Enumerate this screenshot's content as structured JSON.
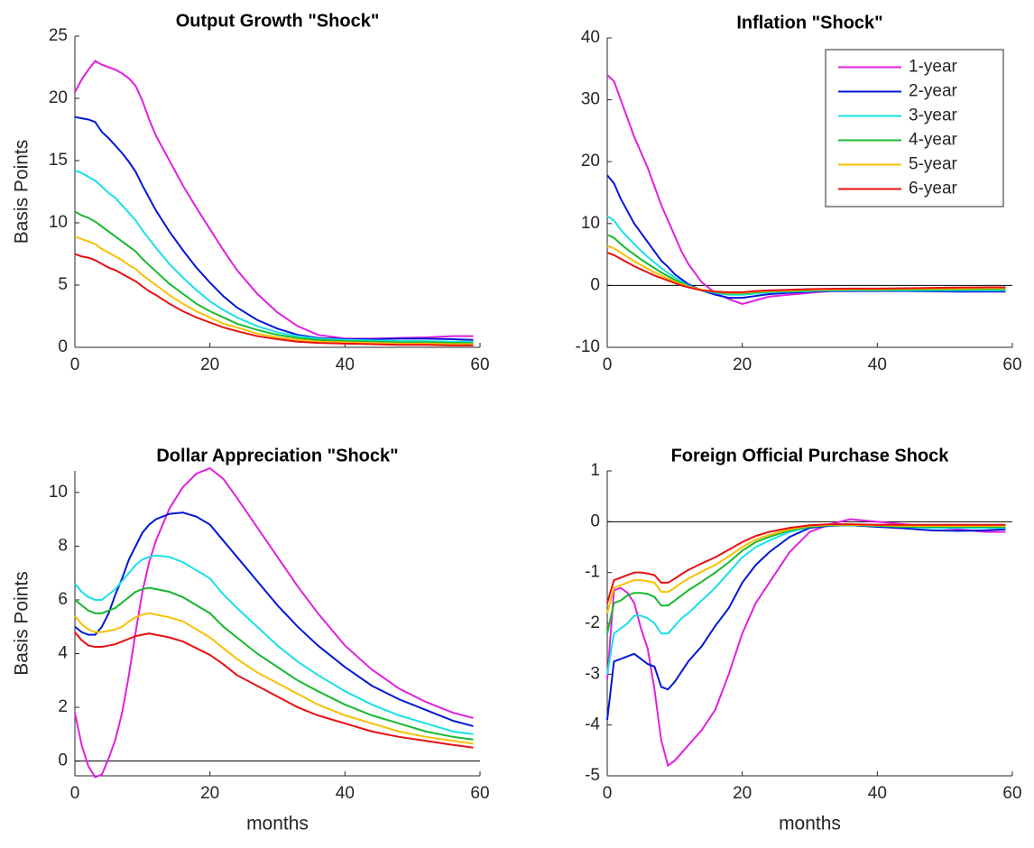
{
  "chart_data": [
    {
      "type": "line",
      "title": "Output Growth \"Shock\"",
      "y_label": "Basis Points",
      "x": [
        0,
        1,
        2,
        3,
        4,
        5,
        6,
        7,
        8,
        9,
        10,
        11,
        12,
        14,
        16,
        18,
        20,
        22,
        24,
        27,
        30,
        33,
        36,
        40,
        44,
        48,
        52,
        56,
        59
      ],
      "xlim": [
        0,
        60
      ],
      "xticks": [
        0,
        20,
        40,
        60
      ],
      "ylim": [
        0,
        25
      ],
      "yticks": [
        0,
        5,
        10,
        15,
        20,
        25
      ],
      "series": [
        {
          "color": "#e020e0",
          "values": [
            20.5,
            21.5,
            22.3,
            23,
            22.7,
            22.5,
            22.3,
            22,
            21.6,
            21,
            19.8,
            18.3,
            17,
            15,
            13,
            11.2,
            9.5,
            7.8,
            6.2,
            4.3,
            2.8,
            1.7,
            1.0,
            0.7,
            0.7,
            0.75,
            0.8,
            0.9,
            0.9
          ]
        },
        {
          "color": "#0018d8",
          "values": [
            18.5,
            18.4,
            18.3,
            18.1,
            17.3,
            16.8,
            16.2,
            15.6,
            14.9,
            14.1,
            13,
            12,
            11,
            9.3,
            7.8,
            6.4,
            5.2,
            4.1,
            3.2,
            2.2,
            1.5,
            1.0,
            0.75,
            0.65,
            0.65,
            0.7,
            0.7,
            0.65,
            0.6
          ]
        },
        {
          "color": "#18e0e8",
          "values": [
            14.2,
            14,
            13.7,
            13.4,
            12.9,
            12.4,
            12,
            11.4,
            10.8,
            10.2,
            9.4,
            8.7,
            8,
            6.7,
            5.6,
            4.6,
            3.7,
            3.0,
            2.4,
            1.7,
            1.2,
            0.9,
            0.7,
            0.6,
            0.55,
            0.5,
            0.5,
            0.45,
            0.45
          ]
        },
        {
          "color": "#18b830",
          "values": [
            10.9,
            10.6,
            10.4,
            10.1,
            9.7,
            9.3,
            8.9,
            8.5,
            8.1,
            7.7,
            7.1,
            6.6,
            6.1,
            5.1,
            4.3,
            3.5,
            2.9,
            2.4,
            1.9,
            1.4,
            1.0,
            0.75,
            0.6,
            0.5,
            0.45,
            0.4,
            0.4,
            0.35,
            0.35
          ]
        },
        {
          "color": "#f8c000",
          "values": [
            8.9,
            8.7,
            8.5,
            8.3,
            7.9,
            7.6,
            7.3,
            7.0,
            6.6,
            6.3,
            5.8,
            5.4,
            5.0,
            4.2,
            3.5,
            2.9,
            2.4,
            1.9,
            1.6,
            1.1,
            0.8,
            0.6,
            0.45,
            0.4,
            0.35,
            0.3,
            0.3,
            0.25,
            0.25
          ]
        },
        {
          "color": "#e81010",
          "values": [
            7.5,
            7.3,
            7.2,
            7.0,
            6.7,
            6.4,
            6.2,
            5.9,
            5.6,
            5.3,
            4.9,
            4.5,
            4.2,
            3.5,
            2.9,
            2.4,
            2.0,
            1.6,
            1.3,
            0.9,
            0.65,
            0.45,
            0.35,
            0.3,
            0.25,
            0.2,
            0.2,
            0.15,
            0.15
          ]
        }
      ]
    },
    {
      "type": "line",
      "title": "Inflation \"Shock\"",
      "legend": "northeast",
      "hline": 0,
      "x": [
        0,
        1,
        2,
        3,
        4,
        5,
        6,
        7,
        8,
        9,
        10,
        11,
        12,
        14,
        16,
        18,
        20,
        22,
        24,
        27,
        30,
        33,
        36,
        40,
        44,
        48,
        52,
        56,
        59
      ],
      "xlim": [
        0,
        60
      ],
      "xticks": [
        0,
        20,
        40,
        60
      ],
      "ylim": [
        -10,
        40
      ],
      "yticks": [
        -10,
        0,
        10,
        20,
        30,
        40
      ],
      "series": [
        {
          "name": "1-year",
          "color": "#e020e0",
          "values": [
            34,
            33,
            30,
            27,
            24,
            21.5,
            19,
            16,
            13,
            10.5,
            8,
            5.5,
            3.5,
            0.5,
            -1.2,
            -2.2,
            -3,
            -2.4,
            -1.8,
            -1.5,
            -1.2,
            -0.9,
            -0.9,
            -0.85,
            -0.85,
            -0.8,
            -0.8,
            -0.75,
            -0.75
          ]
        },
        {
          "name": "2-year",
          "color": "#0018d8",
          "values": [
            17.8,
            16.5,
            14,
            12,
            10,
            8.5,
            7,
            5.5,
            4,
            3,
            1.8,
            1,
            0.2,
            -0.8,
            -1.5,
            -2,
            -2,
            -1.7,
            -1.4,
            -1.2,
            -1.0,
            -0.9,
            -0.9,
            -0.9,
            -0.9,
            -0.95,
            -1.0,
            -1.0,
            -1.0
          ]
        },
        {
          "name": "3-year",
          "color": "#18e0e8",
          "values": [
            11.2,
            10.5,
            9,
            7.8,
            6.7,
            5.6,
            4.6,
            3.7,
            2.8,
            2,
            1.3,
            0.6,
            0,
            -0.8,
            -1.2,
            -1.5,
            -1.5,
            -1.3,
            -1.1,
            -1.0,
            -0.9,
            -0.8,
            -0.8,
            -0.8,
            -0.8,
            -0.8,
            -0.8,
            -0.8,
            -0.8
          ]
        },
        {
          "name": "4-year",
          "color": "#18b830",
          "values": [
            8.2,
            7.7,
            6.7,
            5.8,
            5,
            4.2,
            3.5,
            2.8,
            2.1,
            1.5,
            0.9,
            0.4,
            -0.1,
            -0.7,
            -1.1,
            -1.3,
            -1.3,
            -1.1,
            -1.0,
            -0.9,
            -0.8,
            -0.7,
            -0.7,
            -0.7,
            -0.65,
            -0.65,
            -0.65,
            -0.6,
            -0.6
          ]
        },
        {
          "name": "5-year",
          "color": "#f8c000",
          "values": [
            6.4,
            6,
            5.3,
            4.6,
            3.9,
            3.3,
            2.7,
            2.1,
            1.6,
            1.1,
            0.6,
            0.2,
            -0.2,
            -0.7,
            -1.0,
            -1.2,
            -1.2,
            -1.0,
            -0.9,
            -0.8,
            -0.7,
            -0.65,
            -0.6,
            -0.6,
            -0.55,
            -0.5,
            -0.5,
            -0.45,
            -0.45
          ]
        },
        {
          "name": "6-year",
          "color": "#e81010",
          "values": [
            5.3,
            4.9,
            4.3,
            3.7,
            3.1,
            2.6,
            2.1,
            1.6,
            1.2,
            0.8,
            0.4,
            0,
            -0.3,
            -0.8,
            -1.0,
            -1.1,
            -1.1,
            -0.9,
            -0.8,
            -0.7,
            -0.6,
            -0.55,
            -0.5,
            -0.5,
            -0.45,
            -0.4,
            -0.35,
            -0.3,
            -0.3
          ]
        }
      ]
    },
    {
      "type": "line",
      "title": "Dollar Appreciation \"Shock\"",
      "y_label": "Basis Points",
      "x_label": "months",
      "hline": 0,
      "x": [
        0,
        1,
        2,
        3,
        4,
        5,
        6,
        7,
        8,
        9,
        10,
        11,
        12,
        14,
        16,
        18,
        20,
        22,
        24,
        27,
        30,
        33,
        36,
        40,
        44,
        48,
        52,
        56,
        59
      ],
      "xlim": [
        0,
        60
      ],
      "xticks": [
        0,
        20,
        40,
        60
      ],
      "ylim": [
        -0.55,
        10.8
      ],
      "yticks": [
        0,
        2,
        4,
        6,
        8,
        10
      ],
      "series": [
        {
          "color": "#e020e0",
          "values": [
            1.8,
            0.6,
            -0.2,
            -0.6,
            -0.5,
            0.1,
            0.8,
            1.8,
            3.2,
            4.8,
            6.3,
            7.4,
            8.2,
            9.4,
            10.2,
            10.7,
            10.9,
            10.5,
            9.8,
            8.7,
            7.6,
            6.5,
            5.5,
            4.3,
            3.4,
            2.7,
            2.2,
            1.8,
            1.6
          ]
        },
        {
          "color": "#0018d8",
          "values": [
            5.0,
            4.8,
            4.7,
            4.7,
            5.0,
            5.5,
            6.2,
            6.8,
            7.5,
            8.0,
            8.5,
            8.8,
            9.0,
            9.2,
            9.25,
            9.1,
            8.8,
            8.2,
            7.6,
            6.7,
            5.8,
            5.0,
            4.3,
            3.5,
            2.8,
            2.3,
            1.9,
            1.5,
            1.3
          ]
        },
        {
          "color": "#18e0e8",
          "values": [
            6.6,
            6.3,
            6.1,
            6.0,
            6.0,
            6.2,
            6.4,
            6.7,
            7.0,
            7.3,
            7.5,
            7.6,
            7.65,
            7.6,
            7.4,
            7.1,
            6.8,
            6.2,
            5.7,
            5.0,
            4.3,
            3.7,
            3.2,
            2.6,
            2.1,
            1.7,
            1.4,
            1.1,
            1.0
          ]
        },
        {
          "color": "#18b830",
          "values": [
            6.0,
            5.8,
            5.6,
            5.5,
            5.5,
            5.6,
            5.7,
            5.9,
            6.1,
            6.3,
            6.4,
            6.45,
            6.4,
            6.3,
            6.1,
            5.8,
            5.5,
            5.0,
            4.6,
            4.0,
            3.5,
            3.0,
            2.6,
            2.1,
            1.7,
            1.4,
            1.1,
            0.9,
            0.8
          ]
        },
        {
          "color": "#f8c000",
          "values": [
            5.4,
            5.1,
            4.9,
            4.8,
            4.8,
            4.85,
            4.9,
            5.0,
            5.2,
            5.35,
            5.45,
            5.5,
            5.45,
            5.35,
            5.2,
            4.9,
            4.6,
            4.2,
            3.8,
            3.3,
            2.9,
            2.5,
            2.1,
            1.7,
            1.4,
            1.1,
            0.9,
            0.75,
            0.65
          ]
        },
        {
          "color": "#e81010",
          "values": [
            4.8,
            4.5,
            4.3,
            4.25,
            4.25,
            4.3,
            4.35,
            4.45,
            4.55,
            4.65,
            4.7,
            4.75,
            4.7,
            4.6,
            4.45,
            4.2,
            3.95,
            3.6,
            3.2,
            2.8,
            2.4,
            2.0,
            1.7,
            1.4,
            1.1,
            0.9,
            0.75,
            0.6,
            0.5
          ]
        }
      ]
    },
    {
      "type": "line",
      "title": "Foreign Official Purchase Shock",
      "x_label": "months",
      "hline": 0,
      "x": [
        0,
        1,
        2,
        3,
        4,
        5,
        6,
        7,
        8,
        9,
        10,
        11,
        12,
        14,
        16,
        18,
        20,
        22,
        24,
        27,
        30,
        33,
        36,
        40,
        44,
        48,
        52,
        56,
        59
      ],
      "xlim": [
        0,
        60
      ],
      "xticks": [
        0,
        20,
        40,
        60
      ],
      "ylim": [
        -5,
        1
      ],
      "yticks": [
        -5,
        -4,
        -3,
        -2,
        -1,
        0,
        1
      ],
      "series": [
        {
          "color": "#e020e0",
          "values": [
            -3.1,
            -1.35,
            -1.3,
            -1.4,
            -1.6,
            -2.1,
            -2.5,
            -3.3,
            -4.3,
            -4.8,
            -4.7,
            -4.55,
            -4.4,
            -4.1,
            -3.7,
            -3.0,
            -2.2,
            -1.6,
            -1.2,
            -0.6,
            -0.2,
            -0.05,
            0.05,
            0.0,
            -0.05,
            -0.1,
            -0.15,
            -0.2,
            -0.2
          ]
        },
        {
          "color": "#0018d8",
          "values": [
            -3.9,
            -2.75,
            -2.7,
            -2.65,
            -2.6,
            -2.7,
            -2.8,
            -2.85,
            -3.25,
            -3.3,
            -3.15,
            -2.95,
            -2.75,
            -2.45,
            -2.05,
            -1.7,
            -1.2,
            -0.85,
            -0.6,
            -0.3,
            -0.12,
            -0.08,
            -0.07,
            -0.1,
            -0.13,
            -0.17,
            -0.18,
            -0.17,
            -0.15
          ]
        },
        {
          "color": "#18e0e8",
          "values": [
            -3.0,
            -2.2,
            -2.1,
            -2.0,
            -1.85,
            -1.85,
            -1.9,
            -2.0,
            -2.2,
            -2.2,
            -2.05,
            -1.9,
            -1.8,
            -1.55,
            -1.3,
            -1.0,
            -0.7,
            -0.5,
            -0.37,
            -0.2,
            -0.1,
            -0.07,
            -0.07,
            -0.08,
            -0.1,
            -0.12,
            -0.12,
            -0.12,
            -0.12
          ]
        },
        {
          "color": "#18b830",
          "values": [
            -2.2,
            -1.6,
            -1.55,
            -1.45,
            -1.4,
            -1.4,
            -1.42,
            -1.48,
            -1.65,
            -1.65,
            -1.55,
            -1.45,
            -1.35,
            -1.18,
            -1.0,
            -0.8,
            -0.57,
            -0.4,
            -0.3,
            -0.17,
            -0.1,
            -0.07,
            -0.07,
            -0.08,
            -0.1,
            -0.1,
            -0.1,
            -0.1,
            -0.1
          ]
        },
        {
          "color": "#f8c000",
          "values": [
            -1.8,
            -1.3,
            -1.25,
            -1.2,
            -1.15,
            -1.15,
            -1.17,
            -1.2,
            -1.38,
            -1.38,
            -1.3,
            -1.2,
            -1.12,
            -0.98,
            -0.85,
            -0.68,
            -0.5,
            -0.35,
            -0.26,
            -0.15,
            -0.08,
            -0.06,
            -0.06,
            -0.07,
            -0.08,
            -0.08,
            -0.08,
            -0.08,
            -0.08
          ]
        },
        {
          "color": "#e81010",
          "values": [
            -1.6,
            -1.15,
            -1.1,
            -1.05,
            -1.0,
            -1.0,
            -1.02,
            -1.05,
            -1.2,
            -1.2,
            -1.12,
            -1.03,
            -0.95,
            -0.82,
            -0.7,
            -0.55,
            -0.4,
            -0.28,
            -0.2,
            -0.12,
            -0.07,
            -0.05,
            -0.05,
            -0.06,
            -0.06,
            -0.06,
            -0.06,
            -0.06,
            -0.06
          ]
        }
      ]
    }
  ]
}
